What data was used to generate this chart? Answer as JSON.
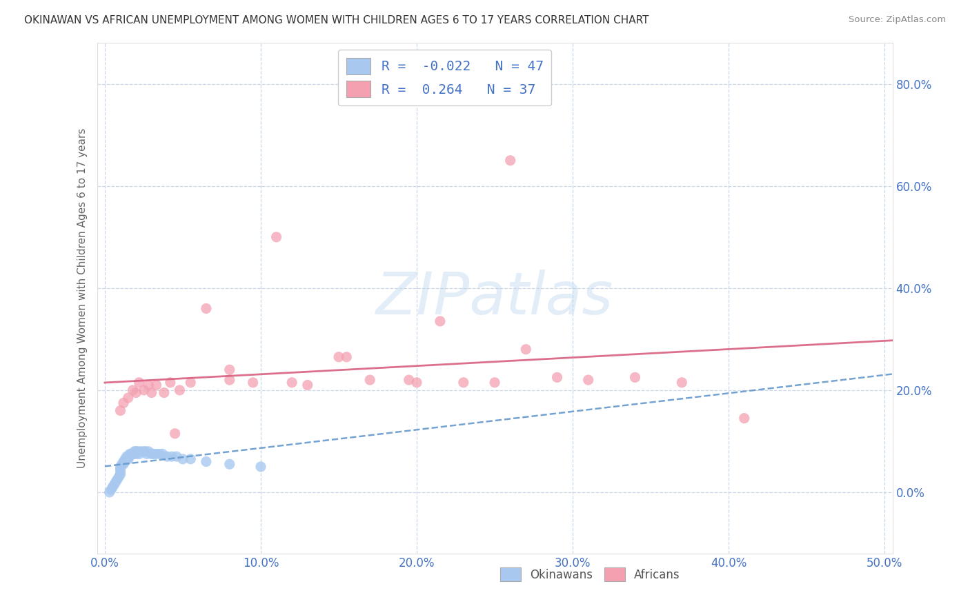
{
  "title": "OKINAWAN VS AFRICAN UNEMPLOYMENT AMONG WOMEN WITH CHILDREN AGES 6 TO 17 YEARS CORRELATION CHART",
  "source": "Source: ZipAtlas.com",
  "ylabel": "Unemployment Among Women with Children Ages 6 to 17 years",
  "xlim": [
    -0.005,
    0.505
  ],
  "ylim": [
    -0.12,
    0.88
  ],
  "xticks": [
    0.0,
    0.1,
    0.2,
    0.3,
    0.4,
    0.5
  ],
  "yticks": [
    0.0,
    0.2,
    0.4,
    0.6,
    0.8
  ],
  "xticklabels": [
    "0.0%",
    "10.0%",
    "20.0%",
    "30.0%",
    "40.0%",
    "50.0%"
  ],
  "yticklabels": [
    "0.0%",
    "20.0%",
    "40.0%",
    "60.0%",
    "80.0%"
  ],
  "okinawan_color": "#a8c8f0",
  "african_color": "#f4a0b0",
  "okinawan_line_color": "#6699cc",
  "african_line_color": "#d96080",
  "okinawan_R": -0.022,
  "okinawan_N": 47,
  "african_R": 0.264,
  "african_N": 37,
  "watermark": "ZIPatlas",
  "background_color": "#ffffff",
  "grid_color": "#c8d8e8",
  "tick_color": "#4472c4",
  "okinawan_x": [
    0.003,
    0.004,
    0.005,
    0.006,
    0.007,
    0.008,
    0.009,
    0.01,
    0.01,
    0.01,
    0.01,
    0.011,
    0.012,
    0.012,
    0.013,
    0.013,
    0.014,
    0.014,
    0.015,
    0.015,
    0.016,
    0.016,
    0.017,
    0.018,
    0.019,
    0.02,
    0.02,
    0.021,
    0.022,
    0.023,
    0.025,
    0.026,
    0.027,
    0.028,
    0.03,
    0.031,
    0.033,
    0.035,
    0.037,
    0.04,
    0.043,
    0.046,
    0.05,
    0.055,
    0.065,
    0.08,
    0.1
  ],
  "okinawan_y": [
    0.0,
    0.005,
    0.01,
    0.015,
    0.02,
    0.025,
    0.03,
    0.035,
    0.04,
    0.045,
    0.05,
    0.055,
    0.055,
    0.06,
    0.06,
    0.065,
    0.065,
    0.07,
    0.065,
    0.07,
    0.07,
    0.075,
    0.075,
    0.075,
    0.08,
    0.075,
    0.08,
    0.08,
    0.075,
    0.08,
    0.08,
    0.08,
    0.075,
    0.08,
    0.075,
    0.075,
    0.075,
    0.075,
    0.075,
    0.07,
    0.07,
    0.07,
    0.065,
    0.065,
    0.06,
    0.055,
    0.05
  ],
  "african_x": [
    0.01,
    0.012,
    0.015,
    0.018,
    0.02,
    0.022,
    0.025,
    0.028,
    0.03,
    0.033,
    0.038,
    0.042,
    0.048,
    0.055,
    0.065,
    0.08,
    0.095,
    0.11,
    0.13,
    0.155,
    0.17,
    0.195,
    0.215,
    0.23,
    0.25,
    0.27,
    0.29,
    0.31,
    0.34,
    0.37,
    0.41,
    0.15,
    0.2,
    0.26,
    0.12,
    0.08,
    0.045
  ],
  "african_y": [
    0.16,
    0.175,
    0.185,
    0.2,
    0.195,
    0.215,
    0.2,
    0.21,
    0.195,
    0.21,
    0.195,
    0.215,
    0.2,
    0.215,
    0.36,
    0.24,
    0.215,
    0.5,
    0.21,
    0.265,
    0.22,
    0.22,
    0.335,
    0.215,
    0.215,
    0.28,
    0.225,
    0.22,
    0.225,
    0.215,
    0.145,
    0.265,
    0.215,
    0.65,
    0.215,
    0.22,
    0.115
  ]
}
